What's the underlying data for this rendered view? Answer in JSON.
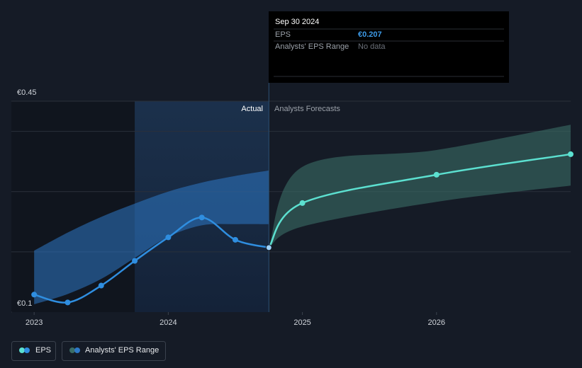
{
  "chart_data": {
    "type": "line",
    "xlim": [
      2022.83,
      2027
    ],
    "xticks": [
      2023,
      2024,
      2025,
      2026
    ],
    "ylim": [
      0.1,
      0.45
    ],
    "yticks": [
      {
        "value": 0.1,
        "label": "€0.1"
      },
      {
        "value": 0.45,
        "label": "€0.45"
      }
    ],
    "gridlines": [
      0.2,
      0.3,
      0.4,
      0.45
    ],
    "shaded_x": [
      2023.75,
      2024.75
    ],
    "actual_label": "Actual",
    "forecast_label": "Analysts Forecasts",
    "series": [
      {
        "name": "EPS",
        "color": "#2f8ee0",
        "forecast_color": "#5ce0d0",
        "x": [
          2023,
          2023.25,
          2023.5,
          2023.75,
          2024,
          2024.25,
          2024.5,
          2024.75
        ],
        "values": [
          0.129,
          0.116,
          0.144,
          0.185,
          0.224,
          0.257,
          0.22,
          0.207
        ],
        "forecast_x": [
          2025,
          2026,
          2027
        ],
        "forecast_values": [
          0.281,
          0.328,
          0.362
        ]
      }
    ],
    "range": {
      "name": "Analysts' EPS Range",
      "color": "#2d79c7",
      "forecast_color": "#3b6e66",
      "x": [
        2023,
        2023.25,
        2023.5,
        2023.75,
        2024,
        2024.25,
        2024.5,
        2024.75
      ],
      "low": [
        0.113,
        0.13,
        0.155,
        0.19,
        0.225,
        0.244,
        0.246,
        0.246
      ],
      "high": [
        0.202,
        0.232,
        0.258,
        0.28,
        0.3,
        0.315,
        0.326,
        0.335
      ],
      "forecast_x": [
        2025,
        2026,
        2027
      ],
      "forecast_low": [
        0.242,
        0.283,
        0.31
      ],
      "forecast_high": [
        0.341,
        0.369,
        0.411
      ]
    },
    "tooltip": {
      "date": "Sep 30 2024",
      "rows": [
        {
          "label": "EPS",
          "value": "€0.207"
        },
        {
          "label": "Analysts' EPS Range",
          "value": "No data"
        }
      ]
    }
  }
}
